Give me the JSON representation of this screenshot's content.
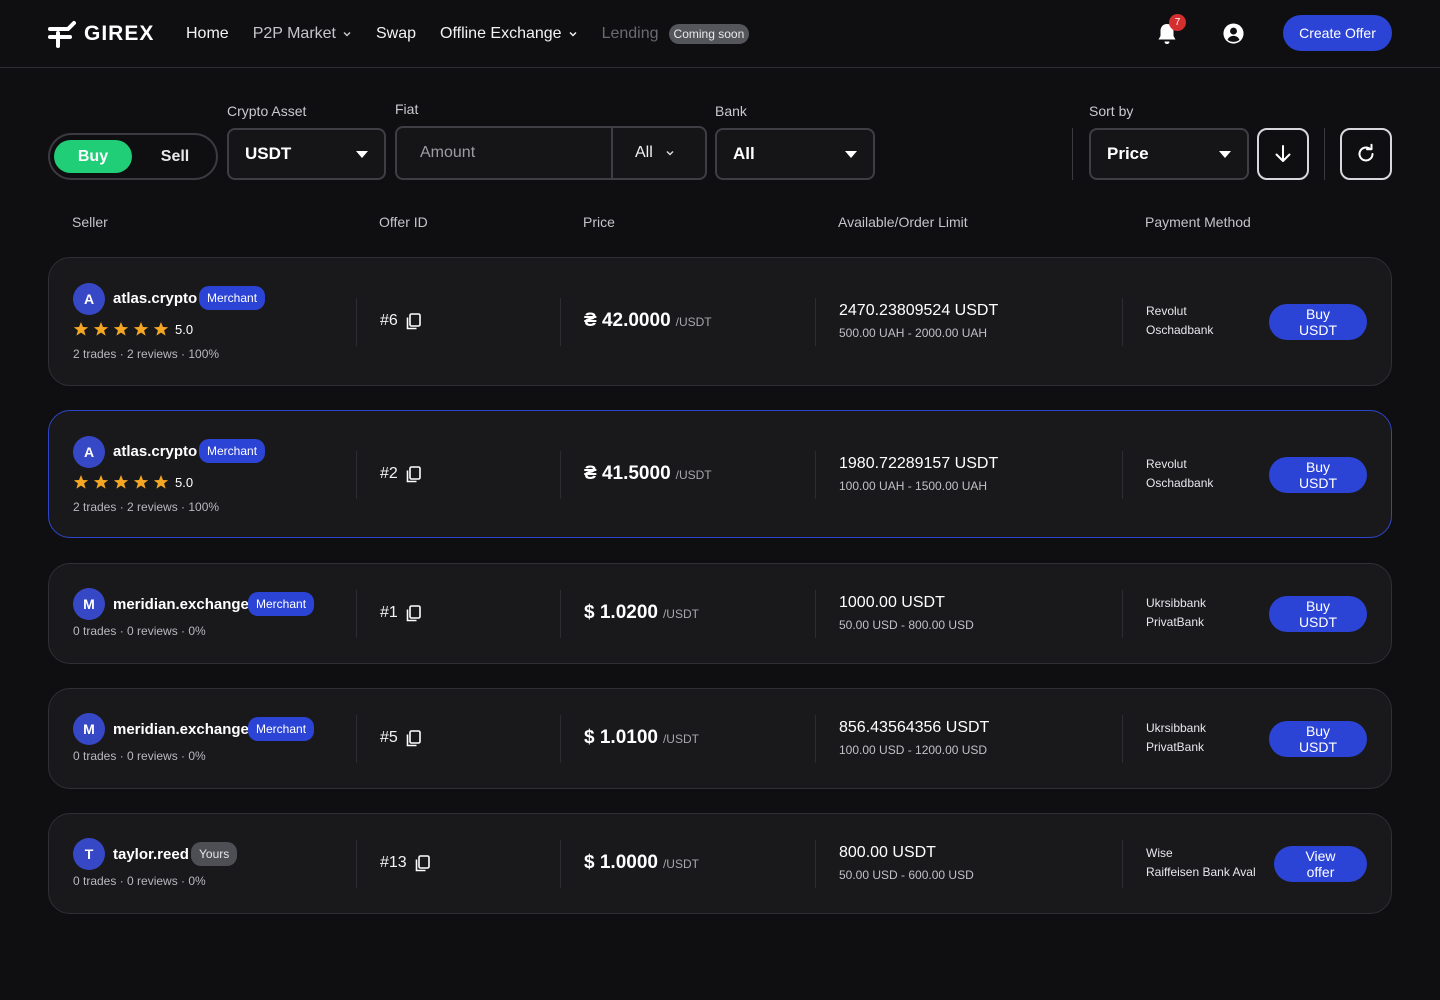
{
  "brand": {
    "name": "GIREX"
  },
  "nav": {
    "home": "Home",
    "p2p": "P2P Market",
    "swap": "Swap",
    "offline": "Offline Exchange",
    "lending": "Lending",
    "coming_soon": "Coming soon"
  },
  "header": {
    "notifications_count": "7",
    "create_offer": "Create Offer"
  },
  "filters": {
    "crypto_label": "Crypto Asset",
    "fiat_label": "Fiat",
    "bank_label": "Bank",
    "sort_label": "Sort by",
    "buy": "Buy",
    "sell": "Sell",
    "crypto_value": "USDT",
    "amount_placeholder": "Amount",
    "fiat_value": "All",
    "bank_value": "All",
    "sort_value": "Price"
  },
  "columns": {
    "seller": "Seller",
    "offer_id": "Offer ID",
    "price": "Price",
    "available": "Available/Order Limit",
    "payment": "Payment Method"
  },
  "offers": [
    {
      "avatar": "A",
      "seller": "atlas.crypto",
      "badge": "Merchant",
      "rating": "5.0",
      "stars": 5,
      "stats": "2 trades · 2 reviews · 100%",
      "offer_id": "#6",
      "price": "₴ 42.0000",
      "unit": "/USDT",
      "available": "2470.23809524 USDT",
      "limit": "500.00 UAH - 2000.00 UAH",
      "pay1": "Revolut",
      "pay2": "Oschadbank",
      "action": "Buy USDT"
    },
    {
      "avatar": "A",
      "seller": "atlas.crypto",
      "badge": "Merchant",
      "rating": "5.0",
      "stars": 5,
      "stats": "2 trades · 2 reviews · 100%",
      "offer_id": "#2",
      "price": "₴ 41.5000",
      "unit": "/USDT",
      "available": "1980.72289157 USDT",
      "limit": "100.00 UAH - 1500.00 UAH",
      "pay1": "Revolut",
      "pay2": "Oschadbank",
      "action": "Buy USDT"
    },
    {
      "avatar": "M",
      "seller": "meridian.exchange",
      "badge": "Merchant",
      "stats": "0 trades · 0 reviews · 0%",
      "offer_id": "#1",
      "price": "$ 1.0200",
      "unit": "/USDT",
      "available": "1000.00 USDT",
      "limit": "50.00 USD - 800.00 USD",
      "pay1": "Ukrsibbank",
      "pay2": "PrivatBank",
      "action": "Buy USDT"
    },
    {
      "avatar": "M",
      "seller": "meridian.exchange",
      "badge": "Merchant",
      "stats": "0 trades · 0 reviews · 0%",
      "offer_id": "#5",
      "price": "$ 1.0100",
      "unit": "/USDT",
      "available": "856.43564356 USDT",
      "limit": "100.00 USD - 1200.00 USD",
      "pay1": "Ukrsibbank",
      "pay2": "PrivatBank",
      "action": "Buy USDT"
    },
    {
      "avatar": "T",
      "seller": "taylor.reed",
      "badge": "Yours",
      "stats": "0 trades · 0 reviews · 0%",
      "offer_id": "#13",
      "price": "$ 1.0000",
      "unit": "/USDT",
      "available": "800.00 USDT",
      "limit": "50.00 USD - 600.00 USD",
      "pay1": "Wise",
      "pay2": "Raiffeisen Bank Aval",
      "action": "View offer"
    }
  ],
  "colors": {
    "accent": "#2c44d6",
    "buy_green": "#1fce76",
    "star": "#f5a623",
    "background": "#0f0f11",
    "card": "#19191c"
  }
}
